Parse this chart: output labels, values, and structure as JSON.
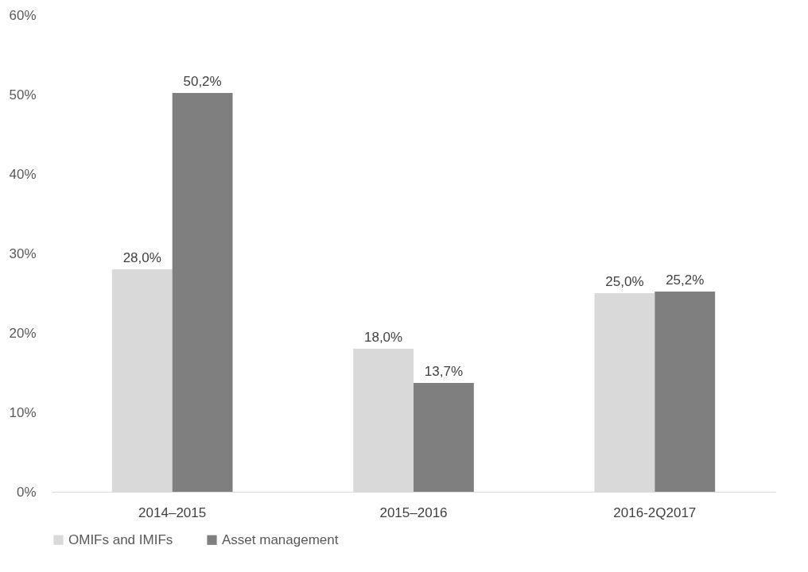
{
  "chart_data": {
    "type": "bar",
    "categories": [
      "2014–2015",
      "2015–2016",
      "2016-2Q2017"
    ],
    "series": [
      {
        "name": "OMIFs and IMIFs",
        "color": "#d9d9d9",
        "values": [
          28.0,
          18.0,
          25.0
        ],
        "value_labels": [
          "28,0%",
          "18,0%",
          "25,0%"
        ]
      },
      {
        "name": "Asset management",
        "color": "#7f7f7f",
        "values": [
          50.2,
          13.7,
          25.2
        ],
        "value_labels": [
          "50,2%",
          "13,7%",
          "25,2%"
        ]
      }
    ],
    "ylim": [
      0,
      60
    ],
    "yticks": [
      {
        "value": 0,
        "label": "0%"
      },
      {
        "value": 10,
        "label": "10%"
      },
      {
        "value": 20,
        "label": "20%"
      },
      {
        "value": 30,
        "label": "30%"
      },
      {
        "value": 40,
        "label": "40%"
      },
      {
        "value": 50,
        "label": "50%"
      },
      {
        "value": 60,
        "label": "60%"
      }
    ],
    "grid": false,
    "legend": "bottom"
  }
}
